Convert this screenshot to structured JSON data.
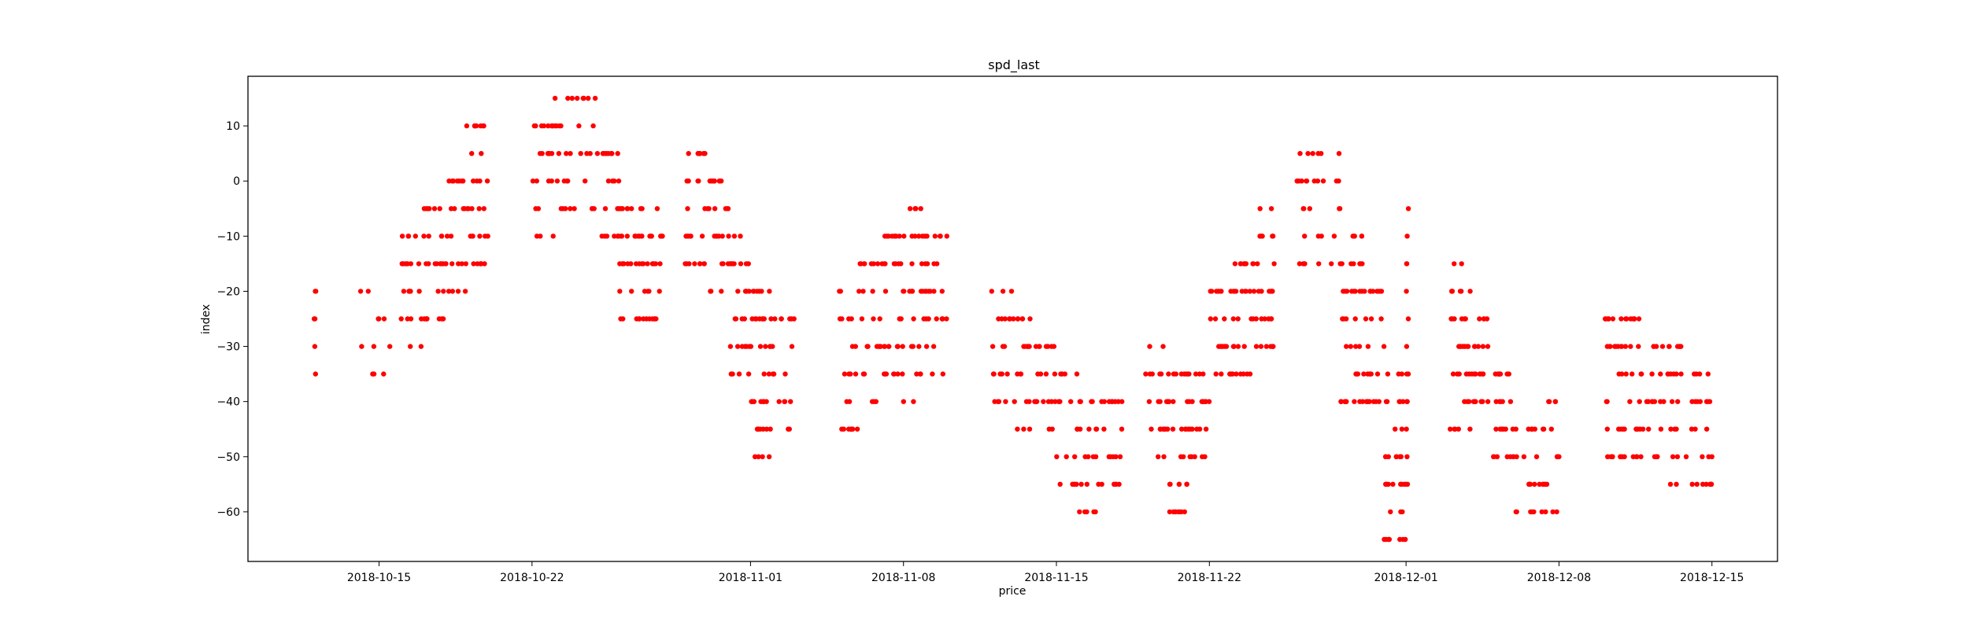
{
  "chart_data": {
    "type": "scatter",
    "title": "spd_last",
    "xlabel": "price",
    "ylabel": "index",
    "x_axis_type": "date",
    "xlim": [
      "2018-10-09",
      "2018-12-18"
    ],
    "ylim": [
      -69,
      19
    ],
    "xticks": [
      "2018-10-15",
      "2018-10-22",
      "2018-11-01",
      "2018-11-08",
      "2018-11-15",
      "2018-11-22",
      "2018-12-01",
      "2018-12-08",
      "2018-12-15"
    ],
    "yticks": [
      10,
      0,
      -10,
      -20,
      -30,
      -40,
      -50,
      -60
    ],
    "grid": false,
    "legend": "none",
    "marker_color": "#ff0000",
    "clusters": [
      {
        "x": [
          "2018-10-12",
          "2018-10-12"
        ],
        "y": [
          -35,
          -20
        ]
      },
      {
        "x": [
          "2018-10-14",
          "2018-10-16"
        ],
        "y": [
          -35,
          -20
        ]
      },
      {
        "x": [
          "2018-10-16",
          "2018-10-17"
        ],
        "y": [
          -30,
          -10
        ]
      },
      {
        "x": [
          "2018-10-17",
          "2018-10-18"
        ],
        "y": [
          -25,
          -5
        ]
      },
      {
        "x": [
          "2018-10-18",
          "2018-10-19"
        ],
        "y": [
          -20,
          0
        ]
      },
      {
        "x": [
          "2018-10-19",
          "2018-10-20"
        ],
        "y": [
          -15,
          10
        ]
      },
      {
        "x": [
          "2018-10-22",
          "2018-10-23"
        ],
        "y": [
          -10,
          10
        ]
      },
      {
        "x": [
          "2018-10-23",
          "2018-10-25"
        ],
        "y": [
          -5,
          15
        ]
      },
      {
        "x": [
          "2018-10-25",
          "2018-10-26"
        ],
        "y": [
          -10,
          5
        ]
      },
      {
        "x": [
          "2018-10-26",
          "2018-10-27"
        ],
        "y": [
          -25,
          -5
        ]
      },
      {
        "x": [
          "2018-10-27",
          "2018-10-28"
        ],
        "y": [
          -25,
          -5
        ]
      },
      {
        "x": [
          "2018-10-29",
          "2018-10-30"
        ],
        "y": [
          -15,
          5
        ]
      },
      {
        "x": [
          "2018-10-30",
          "2018-10-31"
        ],
        "y": [
          -20,
          0
        ]
      },
      {
        "x": [
          "2018-10-31",
          "2018-11-01"
        ],
        "y": [
          -35,
          -10
        ]
      },
      {
        "x": [
          "2018-11-01",
          "2018-11-02"
        ],
        "y": [
          -50,
          -20
        ]
      },
      {
        "x": [
          "2018-11-02",
          "2018-11-03"
        ],
        "y": [
          -45,
          -25
        ]
      },
      {
        "x": [
          "2018-11-05",
          "2018-11-06"
        ],
        "y": [
          -45,
          -20
        ]
      },
      {
        "x": [
          "2018-11-06",
          "2018-11-07"
        ],
        "y": [
          -40,
          -15
        ]
      },
      {
        "x": [
          "2018-11-07",
          "2018-11-08"
        ],
        "y": [
          -35,
          -10
        ]
      },
      {
        "x": [
          "2018-11-08",
          "2018-11-09"
        ],
        "y": [
          -40,
          -5
        ]
      },
      {
        "x": [
          "2018-11-09",
          "2018-11-10"
        ],
        "y": [
          -35,
          -10
        ]
      },
      {
        "x": [
          "2018-11-12",
          "2018-11-13"
        ],
        "y": [
          -40,
          -20
        ]
      },
      {
        "x": [
          "2018-11-13",
          "2018-11-14"
        ],
        "y": [
          -45,
          -25
        ]
      },
      {
        "x": [
          "2018-11-14",
          "2018-11-15"
        ],
        "y": [
          -45,
          -30
        ]
      },
      {
        "x": [
          "2018-11-15",
          "2018-11-16"
        ],
        "y": [
          -55,
          -35
        ]
      },
      {
        "x": [
          "2018-11-16",
          "2018-11-17"
        ],
        "y": [
          -60,
          -40
        ]
      },
      {
        "x": [
          "2018-11-17",
          "2018-11-18"
        ],
        "y": [
          -55,
          -40
        ]
      },
      {
        "x": [
          "2018-11-19",
          "2018-11-20"
        ],
        "y": [
          -50,
          -30
        ]
      },
      {
        "x": [
          "2018-11-20",
          "2018-11-21"
        ],
        "y": [
          -60,
          -35
        ]
      },
      {
        "x": [
          "2018-11-21",
          "2018-11-22"
        ],
        "y": [
          -50,
          -35
        ]
      },
      {
        "x": [
          "2018-11-22",
          "2018-11-23"
        ],
        "y": [
          -35,
          -20
        ]
      },
      {
        "x": [
          "2018-11-23",
          "2018-11-24"
        ],
        "y": [
          -35,
          -15
        ]
      },
      {
        "x": [
          "2018-11-24",
          "2018-11-25"
        ],
        "y": [
          -30,
          -5
        ]
      },
      {
        "x": [
          "2018-11-26",
          "2018-11-27"
        ],
        "y": [
          -15,
          5
        ]
      },
      {
        "x": [
          "2018-11-27",
          "2018-11-28"
        ],
        "y": [
          -15,
          5
        ]
      },
      {
        "x": [
          "2018-11-28",
          "2018-11-29"
        ],
        "y": [
          -40,
          -10
        ]
      },
      {
        "x": [
          "2018-11-29",
          "2018-11-30"
        ],
        "y": [
          -40,
          -20
        ]
      },
      {
        "x": [
          "2018-11-30",
          "2018-12-01"
        ],
        "y": [
          -65,
          -35
        ]
      },
      {
        "x": [
          "2018-12-01",
          "2018-12-01"
        ],
        "y": [
          -55,
          -5
        ]
      },
      {
        "x": [
          "2018-12-03",
          "2018-12-04"
        ],
        "y": [
          -45,
          -15
        ]
      },
      {
        "x": [
          "2018-12-04",
          "2018-12-05"
        ],
        "y": [
          -40,
          -25
        ]
      },
      {
        "x": [
          "2018-12-05",
          "2018-12-06"
        ],
        "y": [
          -50,
          -35
        ]
      },
      {
        "x": [
          "2018-12-06",
          "2018-12-07"
        ],
        "y": [
          -60,
          -45
        ]
      },
      {
        "x": [
          "2018-12-07",
          "2018-12-08"
        ],
        "y": [
          -60,
          -40
        ]
      },
      {
        "x": [
          "2018-12-10",
          "2018-12-11"
        ],
        "y": [
          -50,
          -25
        ]
      },
      {
        "x": [
          "2018-12-11",
          "2018-12-12"
        ],
        "y": [
          -50,
          -25
        ]
      },
      {
        "x": [
          "2018-12-12",
          "2018-12-13"
        ],
        "y": [
          -50,
          -30
        ]
      },
      {
        "x": [
          "2018-12-13",
          "2018-12-14"
        ],
        "y": [
          -55,
          -30
        ]
      },
      {
        "x": [
          "2018-12-14",
          "2018-12-15"
        ],
        "y": [
          -55,
          -35
        ]
      }
    ]
  }
}
